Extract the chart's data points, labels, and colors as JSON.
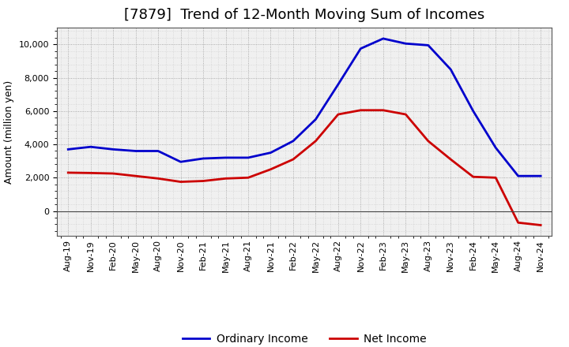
{
  "title": "[7879]  Trend of 12-Month Moving Sum of Incomes",
  "ylabel": "Amount (million yen)",
  "background_color": "#ffffff",
  "plot_background": "#f0f0f0",
  "ordinary_income_color": "#0000cc",
  "net_income_color": "#cc0000",
  "ordinary_income_label": "Ordinary Income",
  "net_income_label": "Net Income",
  "x_labels": [
    "Aug-19",
    "Nov-19",
    "Feb-20",
    "May-20",
    "Aug-20",
    "Nov-20",
    "Feb-21",
    "May-21",
    "Aug-21",
    "Nov-21",
    "Feb-22",
    "May-22",
    "Aug-22",
    "Nov-22",
    "Feb-23",
    "May-23",
    "Aug-23",
    "Nov-23",
    "Feb-24",
    "May-24",
    "Aug-24",
    "Nov-24"
  ],
  "ordinary_income": [
    3700,
    3850,
    3700,
    3600,
    3600,
    2950,
    3150,
    3200,
    3200,
    3500,
    4200,
    5500,
    7600,
    9750,
    10350,
    10050,
    9950,
    8500,
    6000,
    3800,
    2100,
    2100
  ],
  "net_income": [
    2300,
    2280,
    2250,
    2100,
    1950,
    1750,
    1800,
    1950,
    2000,
    2500,
    3100,
    4200,
    5800,
    6050,
    6050,
    5800,
    4200,
    3100,
    2050,
    2000,
    -700,
    -850
  ],
  "ylim": [
    -1500,
    11000
  ],
  "yticks": [
    0,
    2000,
    4000,
    6000,
    8000,
    10000
  ],
  "line_width": 2.0,
  "title_fontsize": 13,
  "legend_fontsize": 10,
  "tick_fontsize": 8,
  "ylabel_fontsize": 9
}
